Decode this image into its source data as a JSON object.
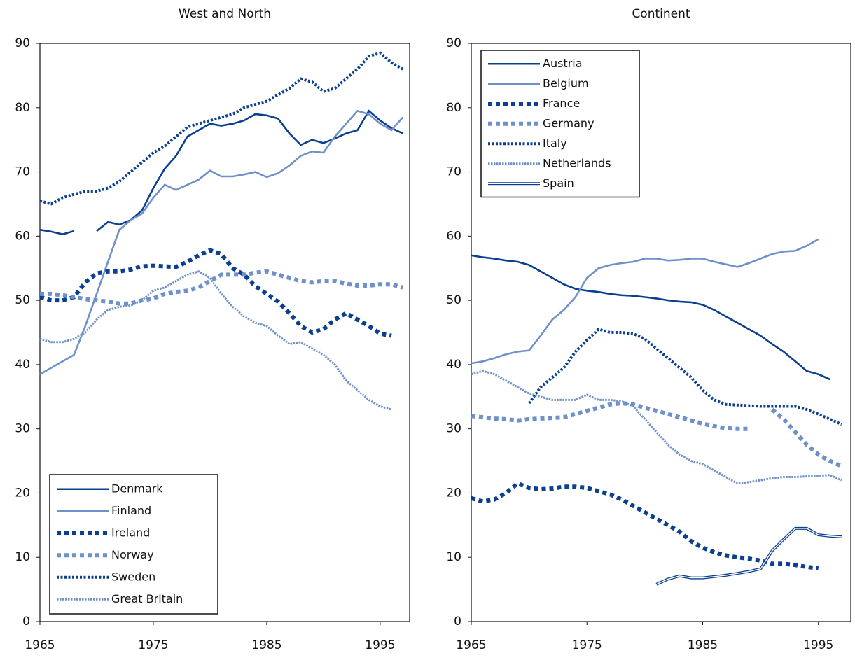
{
  "chart_data": [
    {
      "type": "line",
      "title": "West and North",
      "x": [
        1965,
        1966,
        1967,
        1968,
        1969,
        1970,
        1971,
        1972,
        1973,
        1974,
        1975,
        1976,
        1977,
        1978,
        1979,
        1980,
        1981,
        1982,
        1983,
        1984,
        1985,
        1986,
        1987,
        1988,
        1989,
        1990,
        1991,
        1992,
        1993,
        1994,
        1995,
        1996,
        1997
      ],
      "xlim": [
        1965,
        1997.6
      ],
      "xticks": [
        1965,
        1975,
        1985,
        1995
      ],
      "ylim": [
        0,
        90
      ],
      "yticks": [
        0,
        10,
        20,
        30,
        40,
        50,
        60,
        70,
        80,
        90
      ],
      "legend": "lower left",
      "series": [
        {
          "name": "Denmark",
          "color": "#0b3f8f",
          "style": "solid",
          "values": [
            61,
            60.7,
            60.3,
            60.8,
            null,
            60.8,
            62.2,
            61.8,
            62.5,
            64,
            67.5,
            70.5,
            72.5,
            75.5,
            76.5,
            77.5,
            77.2,
            77.5,
            78,
            79,
            78.8,
            78.3,
            76,
            74.2,
            75,
            74.5,
            75.2,
            76,
            76.5,
            79.5,
            78,
            76.8,
            76
          ]
        },
        {
          "name": "Finland",
          "color": "#6f90c9",
          "style": "solid",
          "values": [
            38.5,
            39.5,
            40.5,
            41.5,
            46,
            51,
            56,
            61,
            62.5,
            63.5,
            66,
            68,
            67.2,
            68,
            68.8,
            70.2,
            69.3,
            69.3,
            69.6,
            70,
            69.2,
            69.8,
            71,
            72.5,
            73.2,
            73,
            75.5,
            77.5,
            79.5,
            79,
            77.5,
            76.5,
            78.5
          ]
        },
        {
          "name": "Ireland",
          "color": "#0b3f8f",
          "style": "square",
          "values": [
            50.5,
            50,
            50,
            50.5,
            52.8,
            54.2,
            54.5,
            54.5,
            54.8,
            55.3,
            55.4,
            55.3,
            55.2,
            56,
            57,
            57.8,
            57.2,
            55,
            54,
            52.2,
            51,
            49.8,
            48,
            46,
            45,
            45.5,
            47,
            48,
            47,
            46,
            44.8,
            44.5,
            null
          ]
        },
        {
          "name": "Norway",
          "color": "#6f90c9",
          "style": "square",
          "values": [
            51,
            51,
            50.8,
            50.5,
            50.2,
            50,
            49.8,
            49.5,
            49.5,
            50,
            50.3,
            51,
            51.3,
            51.5,
            52,
            53,
            54,
            54,
            54,
            54.3,
            54.5,
            54,
            53.5,
            53,
            52.8,
            53,
            53,
            52.6,
            52.3,
            52.3,
            52.5,
            52.5,
            52
          ]
        },
        {
          "name": "Sweden",
          "color": "#0b3f8f",
          "style": "diamond",
          "values": [
            65.5,
            65,
            66,
            66.5,
            67,
            67,
            67.5,
            68.5,
            70,
            71.5,
            73,
            74,
            75.5,
            77,
            77.5,
            78,
            78.5,
            79,
            80,
            80.5,
            81,
            82,
            83,
            84.5,
            84,
            82.5,
            83,
            84.5,
            86,
            88,
            88.5,
            87,
            86
          ]
        },
        {
          "name": "Great Britain",
          "color": "#6f90c9",
          "style": "dotted",
          "values": [
            44,
            43.5,
            43.5,
            44,
            45,
            47,
            48.5,
            49,
            49.2,
            50,
            51.5,
            52,
            53,
            54,
            54.5,
            53.5,
            51,
            49,
            47.5,
            46.5,
            46,
            44.5,
            43.2,
            43.5,
            42.5,
            41.5,
            40,
            37.5,
            36,
            34.5,
            33.5,
            33,
            null
          ]
        }
      ]
    },
    {
      "type": "line",
      "title": "Continent",
      "x": [
        1965,
        1966,
        1967,
        1968,
        1969,
        1970,
        1971,
        1972,
        1973,
        1974,
        1975,
        1976,
        1977,
        1978,
        1979,
        1980,
        1981,
        1982,
        1983,
        1984,
        1985,
        1986,
        1987,
        1988,
        1989,
        1990,
        1991,
        1992,
        1993,
        1994,
        1995,
        1996,
        1997
      ],
      "xlim": [
        1965,
        1997.8
      ],
      "xticks": [
        1965,
        1975,
        1985,
        1995
      ],
      "ylim": [
        0,
        90
      ],
      "yticks": [
        0,
        10,
        20,
        30,
        40,
        50,
        60,
        70,
        80,
        90
      ],
      "legend": "upper left",
      "series": [
        {
          "name": "Austria",
          "color": "#0b3f8f",
          "style": "solid",
          "values": [
            57,
            56.7,
            56.5,
            56.2,
            56,
            55.5,
            54.5,
            53.5,
            52.5,
            51.8,
            51.5,
            51.3,
            51,
            50.8,
            50.7,
            50.5,
            50.3,
            50,
            49.8,
            49.7,
            49.3,
            48.5,
            47.5,
            46.5,
            45.5,
            44.5,
            43.2,
            42,
            40.5,
            39,
            38.5,
            37.7,
            null
          ]
        },
        {
          "name": "Belgium",
          "color": "#6f90c9",
          "style": "solid",
          "values": [
            40.2,
            40.5,
            41,
            41.6,
            42,
            42.2,
            44.5,
            47,
            48.5,
            50.5,
            53.5,
            55,
            55.5,
            55.8,
            56,
            56.5,
            56.5,
            56.2,
            56.3,
            56.5,
            56.5,
            56,
            55.6,
            55.2,
            55.8,
            56.5,
            57.2,
            57.6,
            57.7,
            58.5,
            59.5,
            null,
            null
          ]
        },
        {
          "name": "France",
          "color": "#0b3f8f",
          "style": "square",
          "values": [
            19.2,
            18.7,
            19,
            20,
            21.5,
            20.8,
            20.6,
            20.7,
            21,
            21,
            20.8,
            20.3,
            19.8,
            19,
            18,
            17,
            16,
            15,
            14,
            12.5,
            11.5,
            10.8,
            10.3,
            10,
            9.8,
            9.5,
            9,
            9,
            8.8,
            8.5,
            8.3,
            null,
            null
          ]
        },
        {
          "name": "Germany",
          "color": "#6f90c9",
          "style": "square",
          "values": [
            32,
            31.8,
            31.6,
            31.5,
            31.3,
            31.5,
            31.6,
            31.7,
            31.8,
            32.3,
            32.8,
            33.3,
            33.8,
            34,
            33.8,
            33.3,
            32.8,
            32.3,
            31.8,
            31.3,
            30.8,
            30.4,
            30.1,
            30,
            30,
            null,
            33,
            31.5,
            29.5,
            27.5,
            26,
            25,
            24.2
          ]
        },
        {
          "name": "Italy",
          "color": "#0b3f8f",
          "style": "diamond",
          "values": [
            null,
            null,
            null,
            null,
            null,
            34,
            36.5,
            38,
            39.5,
            42,
            43.8,
            45.5,
            45,
            45,
            44.8,
            44,
            42.5,
            41,
            39.5,
            38,
            36,
            34.5,
            33.8,
            33.7,
            33.6,
            33.5,
            33.5,
            33.5,
            33.5,
            33,
            32.3,
            31.5,
            30.7
          ]
        },
        {
          "name": "Netherlands",
          "color": "#6f90c9",
          "style": "dotted",
          "values": [
            38.5,
            39,
            38.5,
            37.5,
            36.5,
            35.5,
            35,
            34.5,
            34.5,
            34.5,
            35.3,
            34.5,
            34.5,
            34.3,
            33.5,
            31.5,
            29.5,
            27.5,
            26,
            25,
            24.5,
            23.5,
            22.5,
            21.5,
            21.7,
            22,
            22.3,
            22.5,
            22.5,
            22.6,
            22.7,
            22.8,
            22
          ]
        },
        {
          "name": "Spain",
          "color": "#0b3f8f",
          "style": "double",
          "values": [
            null,
            null,
            null,
            null,
            null,
            null,
            null,
            null,
            null,
            null,
            null,
            null,
            null,
            null,
            null,
            null,
            5.8,
            6.6,
            7.1,
            6.8,
            6.8,
            7,
            7.2,
            7.5,
            7.8,
            8.2,
            11,
            12.8,
            14.5,
            14.5,
            13.5,
            13.3,
            13.2
          ]
        }
      ]
    }
  ]
}
